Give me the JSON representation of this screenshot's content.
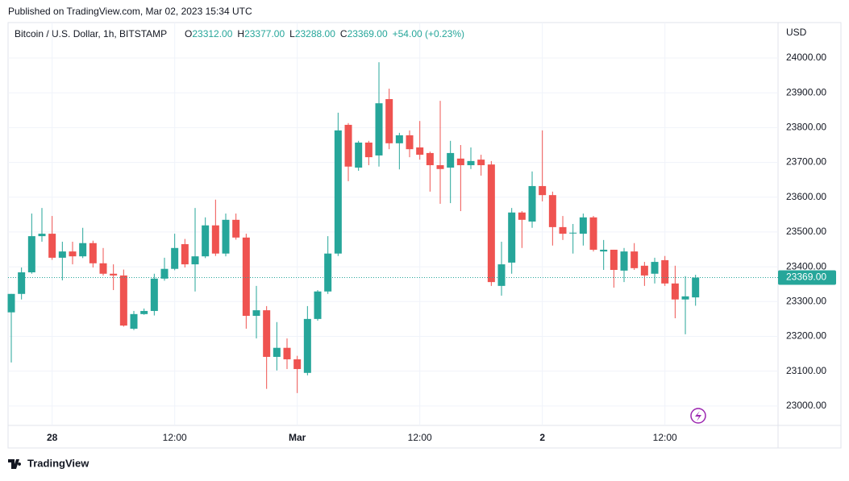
{
  "published": "Published on TradingView.com, Mar 02, 2023 15:34 UTC",
  "brand": "TradingView",
  "chart_data": {
    "type": "candlestick",
    "title": "Bitcoin / U.S. Dollar, 1h, BITSTAMP",
    "legend_ohlc": [
      {
        "label": "O",
        "value": "23312.00"
      },
      {
        "label": "H",
        "value": "23377.00"
      },
      {
        "label": "L",
        "value": "23288.00"
      },
      {
        "label": "C",
        "value": "23369.00"
      }
    ],
    "change": "+54.00 (+0.23%)",
    "y_axis_unit": "USD",
    "up_color": "#26a69a",
    "down_color": "#ef5350",
    "grid": true,
    "categories": [
      null,
      null,
      null,
      null,
      "28",
      null,
      null,
      null,
      null,
      null,
      null,
      null,
      null,
      null,
      null,
      null,
      "12:00",
      null,
      null,
      null,
      null,
      null,
      null,
      null,
      null,
      null,
      null,
      null,
      "Mar",
      null,
      null,
      null,
      null,
      null,
      null,
      null,
      null,
      null,
      null,
      null,
      "12:00",
      null,
      null,
      null,
      null,
      null,
      null,
      null,
      null,
      null,
      null,
      null,
      "2",
      null,
      null,
      null,
      null,
      null,
      null,
      null,
      null,
      null,
      null,
      null,
      "12:00",
      null,
      null,
      null
    ],
    "open": [
      23269,
      23322,
      23384,
      23488,
      23495,
      23426,
      23444,
      23430,
      23468,
      23410,
      23380,
      23375,
      23222,
      23264,
      23273,
      23366,
      23394,
      23465,
      23407,
      23430,
      23519,
      23438,
      23535,
      23484,
      23259,
      23275,
      23141,
      23167,
      23134,
      23095,
      23250,
      23329,
      23438,
      23808,
      23685,
      23757,
      23720,
      23882,
      23755,
      23778,
      23743,
      23727,
      23692,
      23685,
      23711,
      23692,
      23708,
      23694,
      23345,
      23412,
      23556,
      23530,
      23632,
      23606,
      23514,
      23497,
      23495,
      23542,
      23444,
      23449,
      23389,
      23444,
      23403,
      23380,
      23419,
      23352,
      23306,
      23312
    ],
    "high": [
      23322,
      23398,
      23553,
      23569,
      23546,
      23472,
      23472,
      23512,
      23475,
      23454,
      23407,
      23392,
      23273,
      23280,
      23380,
      23426,
      23495,
      23480,
      23569,
      23542,
      23593,
      23553,
      23553,
      23495,
      23345,
      23287,
      23241,
      23194,
      23144,
      23287,
      23333,
      23488,
      23843,
      23813,
      23762,
      23762,
      23988,
      23912,
      23785,
      23792,
      23819,
      23731,
      23877,
      23762,
      23750,
      23743,
      23722,
      23704,
      23472,
      23569,
      23560,
      23674,
      23792,
      23616,
      23546,
      23523,
      23553,
      23546,
      23477,
      23449,
      23454,
      23468,
      23414,
      23426,
      23431,
      23403,
      23373,
      23377
    ],
    "low": [
      23125,
      23306,
      23380,
      23472,
      23420,
      23361,
      23407,
      23425,
      23398,
      23375,
      23333,
      23228,
      23218,
      23262,
      23260,
      23360,
      23390,
      23398,
      23329,
      23425,
      23431,
      23430,
      23478,
      23222,
      23194,
      23049,
      23102,
      23106,
      23037,
      23088,
      23245,
      23322,
      23431,
      23646,
      23676,
      23692,
      23688,
      23738,
      23680,
      23715,
      23708,
      23616,
      23581,
      23583,
      23560,
      23681,
      23662,
      23345,
      23317,
      23380,
      23454,
      23512,
      23588,
      23461,
      23477,
      23438,
      23461,
      23444,
      23391,
      23340,
      23356,
      23391,
      23345,
      23352,
      23345,
      23252,
      23206,
      23288
    ],
    "close": [
      23322,
      23384,
      23488,
      23495,
      23426,
      23444,
      23430,
      23468,
      23410,
      23380,
      23375,
      23231,
      23264,
      23273,
      23366,
      23394,
      23454,
      23407,
      23430,
      23519,
      23438,
      23535,
      23484,
      23259,
      23275,
      23141,
      23167,
      23134,
      23106,
      23250,
      23329,
      23438,
      23792,
      23688,
      23757,
      23715,
      23870,
      23755,
      23778,
      23738,
      23722,
      23692,
      23681,
      23727,
      23692,
      23704,
      23692,
      23356,
      23407,
      23556,
      23535,
      23632,
      23606,
      23514,
      23495,
      23498,
      23542,
      23449,
      23449,
      23391,
      23444,
      23396,
      23375,
      23414,
      23352,
      23306,
      23315,
      23369
    ],
    "ylim": [
      22944,
      24102
    ],
    "yticks": [
      {
        "value": 23000,
        "label": "23000.00"
      },
      {
        "value": 23100,
        "label": "23100.00"
      },
      {
        "value": 23200,
        "label": "23200.00"
      },
      {
        "value": 23300,
        "label": "23300.00"
      },
      {
        "value": 23400,
        "label": "23400.00"
      },
      {
        "value": 23500,
        "label": "23500.00"
      },
      {
        "value": 23600,
        "label": "23600.00"
      },
      {
        "value": 23700,
        "label": "23700.00"
      },
      {
        "value": 23800,
        "label": "23800.00"
      },
      {
        "value": 23900,
        "label": "23900.00"
      },
      {
        "value": 24000,
        "label": "24000.00"
      }
    ],
    "last_price": {
      "value": 23369,
      "label": "23369.00"
    }
  }
}
